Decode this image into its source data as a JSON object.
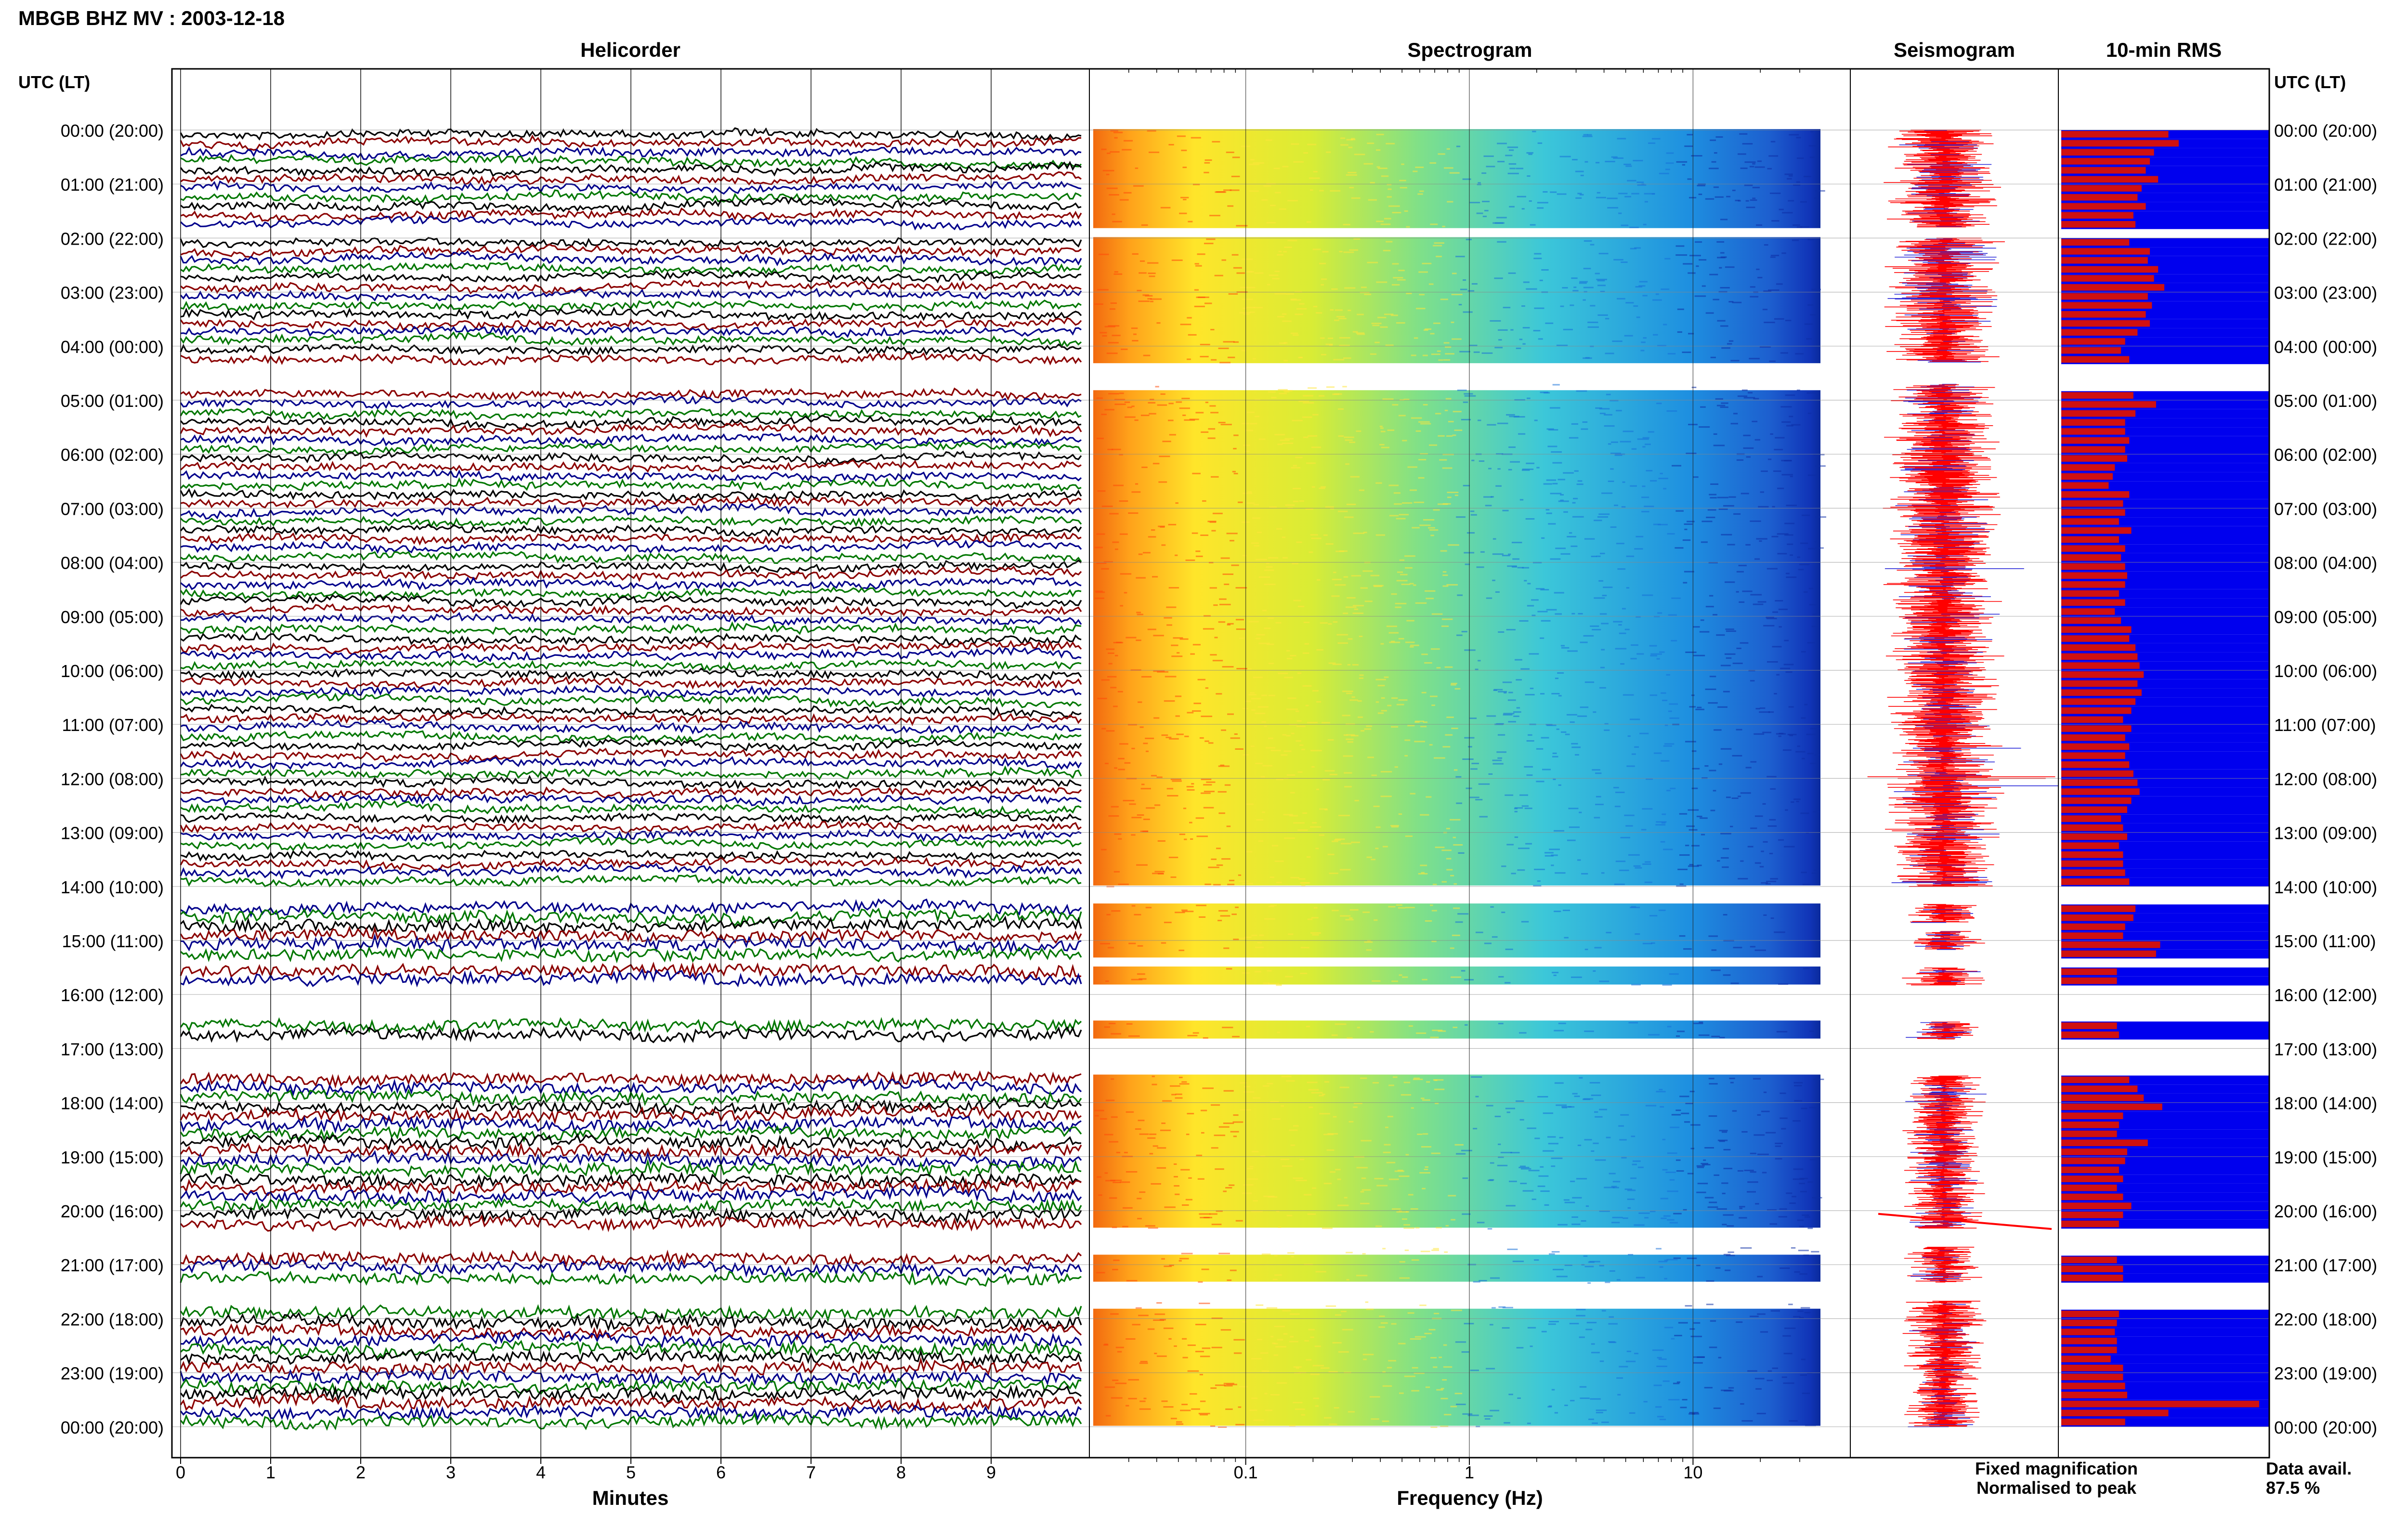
{
  "header": {
    "title": "MBGB BHZ MV : 2003-12-18"
  },
  "panels": {
    "helicorder": "Helicorder",
    "spectrogram": "Spectrogram",
    "seismogram": "Seismogram",
    "rms": "10-min RMS"
  },
  "axis": {
    "time_header_left": "UTC (LT)",
    "time_header_right": "UTC (LT)",
    "minutes_label": "Minutes",
    "frequency_label": "Frequency (Hz)"
  },
  "legend": {
    "fixed": "Fixed magnification",
    "normalised": "Normalised to peak",
    "fixed_color": "#0000ee",
    "normalised_color": "#ee0000"
  },
  "data_avail": {
    "label": "Data avail.",
    "value": "87.5 %"
  },
  "colors": {
    "helicorder_traces": [
      "#000000",
      "#8b0000",
      "#00008b",
      "#007700"
    ],
    "rms_bar": "#d01010",
    "rms_fill": "#0000ee",
    "seismogram": "#ff0000"
  },
  "chart_data": [
    {
      "type": "line",
      "title": "Helicorder",
      "xlabel": "Minutes",
      "xlim": [
        0,
        10
      ],
      "x_ticks": [
        "0",
        "1",
        "2",
        "3",
        "4",
        "5",
        "6",
        "7",
        "8",
        "9"
      ],
      "hour_labels": [
        "00:00 (20:00)",
        "01:00 (21:00)",
        "02:00 (22:00)",
        "03:00 (23:00)",
        "04:00 (00:00)",
        "05:00 (01:00)",
        "06:00 (02:00)",
        "07:00 (03:00)",
        "08:00 (04:00)",
        "09:00 (05:00)",
        "10:00 (06:00)",
        "11:00 (07:00)",
        "12:00 (08:00)",
        "13:00 (09:00)",
        "14:00 (10:00)",
        "15:00 (11:00)",
        "16:00 (12:00)",
        "17:00 (13:00)",
        "18:00 (14:00)",
        "19:00 (15:00)",
        "20:00 (16:00)",
        "21:00 (17:00)",
        "22:00 (18:00)",
        "23:00 (19:00)",
        "00:00 (20:00)"
      ]
    },
    {
      "type": "heatmap",
      "title": "Spectrogram",
      "xlabel": "Frequency (Hz)",
      "x_scale": "log",
      "x_ticks": [
        "0.1",
        "1",
        "10"
      ],
      "xlim": [
        0.02,
        50
      ]
    },
    {
      "type": "line",
      "title": "Seismogram"
    },
    {
      "type": "bar",
      "title": "10-min RMS",
      "legend": [
        "Fixed magnification",
        "Normalised to peak"
      ],
      "gaps_hours": [
        [
          1.8,
          2.0
        ],
        [
          4.3,
          4.7
        ],
        [
          14.0,
          14.33
        ],
        [
          14.67,
          14.83
        ],
        [
          15.17,
          15.5
        ],
        [
          15.83,
          16.5
        ],
        [
          16.83,
          17.5
        ],
        [
          20.33,
          20.67
        ],
        [
          21.33,
          21.67
        ]
      ],
      "rms_normalised": [
        0.52,
        0.57,
        0.45,
        0.43,
        0.41,
        0.47,
        0.39,
        0.37,
        0.41,
        0.35,
        0.36,
        0.33,
        0.43,
        0.42,
        0.47,
        0.45,
        0.5,
        0.42,
        0.44,
        0.41,
        0.43,
        0.37,
        0.31,
        0.29,
        0.33,
        0.35,
        0.46,
        0.36,
        0.31,
        0.31,
        0.33,
        0.31,
        0.32,
        0.26,
        0.25,
        0.23,
        0.33,
        0.3,
        0.31,
        0.28,
        0.34,
        0.28,
        0.31,
        0.29,
        0.31,
        0.32,
        0.31,
        0.28,
        0.31,
        0.26,
        0.29,
        0.34,
        0.33,
        0.36,
        0.37,
        0.38,
        0.4,
        0.37,
        0.39,
        0.36,
        0.34,
        0.3,
        0.34,
        0.31,
        0.33,
        0.31,
        0.33,
        0.35,
        0.37,
        0.38,
        0.34,
        0.32,
        0.29,
        0.3,
        0.32,
        0.28,
        0.3,
        0.3,
        0.31,
        0.33,
        0.36,
        0.35,
        0.31,
        0.3,
        0.48,
        0.46,
        0.27,
        0.27,
        0.27,
        0.28,
        0.33,
        0.37,
        0.4,
        0.49,
        0.3,
        0.28,
        0.27,
        0.42,
        0.32,
        0.31,
        0.28,
        0.3,
        0.27,
        0.3,
        0.34,
        0.3,
        0.28,
        0.27,
        0.3,
        0.3,
        0.28,
        0.27,
        0.26,
        0.27,
        0.27,
        0.24,
        0.3,
        0.3,
        0.31,
        0.32,
        0.96,
        0.52,
        0.31,
        0.29,
        0.27,
        0.3,
        0.31,
        0.35,
        0.39,
        0.39,
        0.42,
        0.39,
        0.42,
        0.39,
        0.4,
        0.34,
        0.32,
        0.3,
        0.26,
        0.27,
        0.25,
        0.24,
        0.29,
        0.29
      ]
    }
  ]
}
